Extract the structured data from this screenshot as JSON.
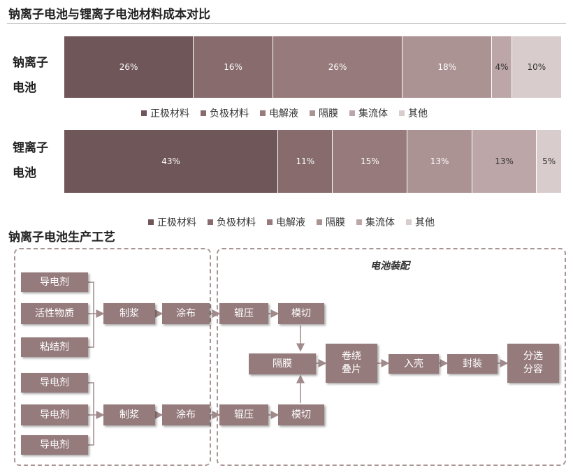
{
  "page": {
    "title": "钠离子电池与锂离子电池材料成本对比",
    "process_title": "钠离子电池生产工艺"
  },
  "colors": {
    "cat1": "#6f5658",
    "cat2": "#876b6d",
    "cat3": "#977a7b",
    "cat4": "#ab9293",
    "cat5": "#bca6a7",
    "cat6": "#d9cccc",
    "box": "#967b7d",
    "connector": "#a08a8b"
  },
  "chart_data": {
    "type": "bar",
    "orientation": "horizontal-stacked-100",
    "title": "钠离子电池与锂离子电池材料成本对比",
    "categories": [
      "正极材料",
      "负极材料",
      "电解液",
      "隔膜",
      "集流体",
      "其他"
    ],
    "bars": [
      {
        "label": "钠离子电池",
        "values": [
          26,
          16,
          26,
          18,
          4,
          10
        ]
      },
      {
        "label": "锂离子电池",
        "values": [
          43,
          11,
          15,
          13,
          13,
          5
        ]
      }
    ],
    "unit": "%",
    "legend_placement": "below each bar",
    "grid": false
  },
  "process": {
    "assembly_title": "电池装配",
    "boxes": {
      "conductive1": "导电剂",
      "active": "活性物质",
      "binder": "粘结剂",
      "slurry1": "制浆",
      "coat1": "涂布",
      "roll1": "辊压",
      "die1": "模切",
      "conductive2": "导电剂",
      "conductive3": "导电剂",
      "conductive4": "导电剂",
      "slurry2": "制浆",
      "coat2": "涂布",
      "roll2": "辊压",
      "die2": "模切",
      "separator": "隔膜",
      "wind": "卷绕\n叠片",
      "case": "入壳",
      "seal": "封装",
      "sort": "分选\n分容"
    }
  }
}
